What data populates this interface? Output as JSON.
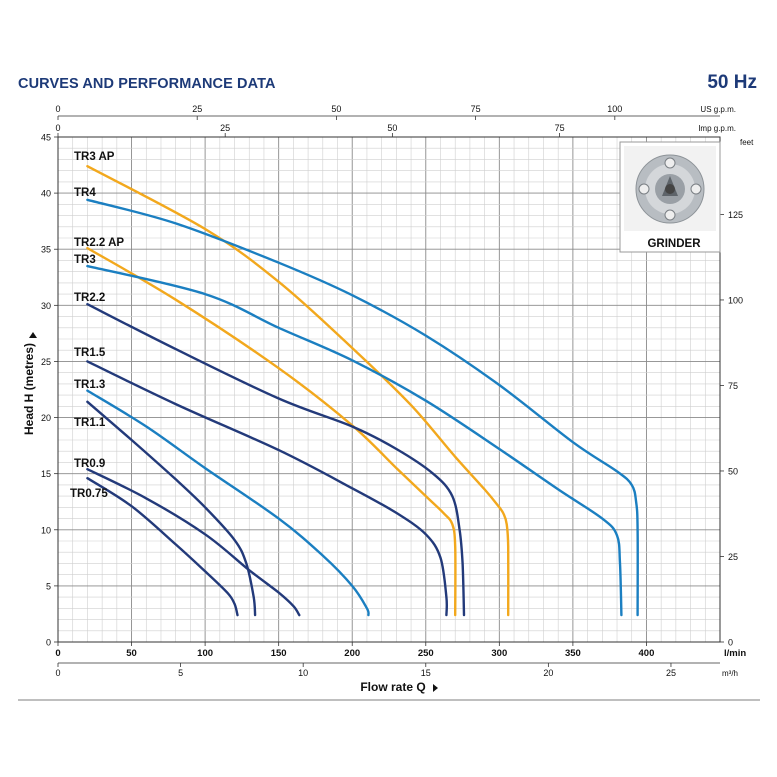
{
  "header": {
    "title": "CURVES AND PERFORMANCE DATA",
    "frequency": "50 Hz"
  },
  "inset": {
    "label": "GRINDER"
  },
  "chart_data": {
    "type": "line",
    "xlabel": "Flow rate Q",
    "ylabel": "Head H (metres)",
    "xlim": [
      0,
      450
    ],
    "ylim": [
      0,
      45
    ],
    "grid": true,
    "axes": {
      "left": {
        "ticks": [
          "0",
          "5",
          "10",
          "15",
          "20",
          "25",
          "30",
          "35",
          "40",
          "45"
        ]
      },
      "right": {
        "unit": "feet",
        "ticks": [
          "0",
          "25",
          "50",
          "75",
          "100",
          "125"
        ]
      },
      "bottom_lmin": {
        "unit": "l/min",
        "ticks": [
          "0",
          "50",
          "100",
          "150",
          "200",
          "250",
          "300",
          "350",
          "400"
        ]
      },
      "bottom_m3h": {
        "unit": "m³/h",
        "ticks": [
          "0",
          "5",
          "10",
          "15",
          "20",
          "25"
        ]
      },
      "top_usgpm": {
        "unit": "US g.p.m.",
        "ticks": [
          "0",
          "25",
          "50",
          "75",
          "100"
        ]
      },
      "top_impgpm": {
        "unit": "Imp g.p.m.",
        "ticks": [
          "0",
          "25",
          "50",
          "75"
        ]
      }
    },
    "series": [
      {
        "name": "TR3 AP",
        "color": "#f2a81d",
        "points": [
          [
            20,
            42.4
          ],
          [
            100,
            36.8
          ],
          [
            150,
            32.1
          ],
          [
            200,
            26.2
          ],
          [
            240,
            21.1
          ],
          [
            270,
            16.5
          ],
          [
            290,
            13.6
          ],
          [
            300,
            12.0
          ],
          [
            303,
            11.4
          ],
          [
            305,
            10.5
          ],
          [
            306,
            8.5
          ],
          [
            306,
            2.4
          ]
        ]
      },
      {
        "name": "TR4",
        "color": "#1b7fc1",
        "points": [
          [
            20,
            39.4
          ],
          [
            80,
            37.3
          ],
          [
            150,
            33.8
          ],
          [
            200,
            30.9
          ],
          [
            250,
            27.3
          ],
          [
            300,
            22.9
          ],
          [
            350,
            17.8
          ],
          [
            380,
            15.2
          ],
          [
            390,
            14.0
          ],
          [
            393,
            12.5
          ],
          [
            394,
            10.0
          ],
          [
            394,
            2.4
          ]
        ]
      },
      {
        "name": "TR2.2 AP",
        "color": "#f2a81d",
        "points": [
          [
            20,
            35.1
          ],
          [
            80,
            30.5
          ],
          [
            150,
            24.4
          ],
          [
            200,
            19.3
          ],
          [
            230,
            15.5
          ],
          [
            250,
            13.0
          ],
          [
            262,
            11.5
          ],
          [
            268,
            10.5
          ],
          [
            270,
            8.5
          ],
          [
            270,
            2.4
          ]
        ]
      },
      {
        "name": "TR3",
        "color": "#1b7fc1",
        "points": [
          [
            20,
            33.5
          ],
          [
            100,
            31.0
          ],
          [
            150,
            28.0
          ],
          [
            200,
            25.1
          ],
          [
            250,
            21.5
          ],
          [
            300,
            17.2
          ],
          [
            340,
            13.6
          ],
          [
            370,
            11.0
          ],
          [
            380,
            9.5
          ],
          [
            382,
            7.0
          ],
          [
            383,
            2.4
          ]
        ]
      },
      {
        "name": "TR2.2",
        "color": "#233a7a",
        "points": [
          [
            20,
            30.1
          ],
          [
            80,
            26.1
          ],
          [
            150,
            21.7
          ],
          [
            200,
            19.2
          ],
          [
            230,
            17.2
          ],
          [
            255,
            15.0
          ],
          [
            268,
            13.0
          ],
          [
            273,
            10.0
          ],
          [
            275,
            7.0
          ],
          [
            276,
            2.4
          ]
        ]
      },
      {
        "name": "TR1.5",
        "color": "#233a7a",
        "points": [
          [
            20,
            25.0
          ],
          [
            80,
            21.2
          ],
          [
            150,
            17.1
          ],
          [
            200,
            13.7
          ],
          [
            230,
            11.5
          ],
          [
            250,
            9.6
          ],
          [
            260,
            7.5
          ],
          [
            264,
            4.0
          ],
          [
            264,
            2.4
          ]
        ]
      },
      {
        "name": "TR1.3",
        "color": "#1b7fc1",
        "points": [
          [
            20,
            22.4
          ],
          [
            60,
            19.2
          ],
          [
            100,
            15.5
          ],
          [
            150,
            11.0
          ],
          [
            180,
            7.7
          ],
          [
            200,
            5.0
          ],
          [
            210,
            3.0
          ],
          [
            211,
            2.4
          ]
        ]
      },
      {
        "name": "TR1.1",
        "color": "#233a7a",
        "points": [
          [
            20,
            21.4
          ],
          [
            50,
            18.0
          ],
          [
            80,
            14.5
          ],
          [
            100,
            12.0
          ],
          [
            120,
            9.1
          ],
          [
            128,
            7.0
          ],
          [
            133,
            4.0
          ],
          [
            134,
            2.4
          ]
        ]
      },
      {
        "name": "TR0.9",
        "color": "#233a7a",
        "points": [
          [
            20,
            15.4
          ],
          [
            60,
            12.8
          ],
          [
            100,
            9.6
          ],
          [
            130,
            6.4
          ],
          [
            150,
            4.4
          ],
          [
            160,
            3.2
          ],
          [
            164,
            2.4
          ]
        ]
      },
      {
        "name": "TR0.75",
        "color": "#233a7a",
        "points": [
          [
            20,
            14.6
          ],
          [
            50,
            12.1
          ],
          [
            80,
            8.7
          ],
          [
            100,
            6.3
          ],
          [
            115,
            4.4
          ],
          [
            120,
            3.4
          ],
          [
            122,
            2.4
          ]
        ]
      }
    ]
  }
}
